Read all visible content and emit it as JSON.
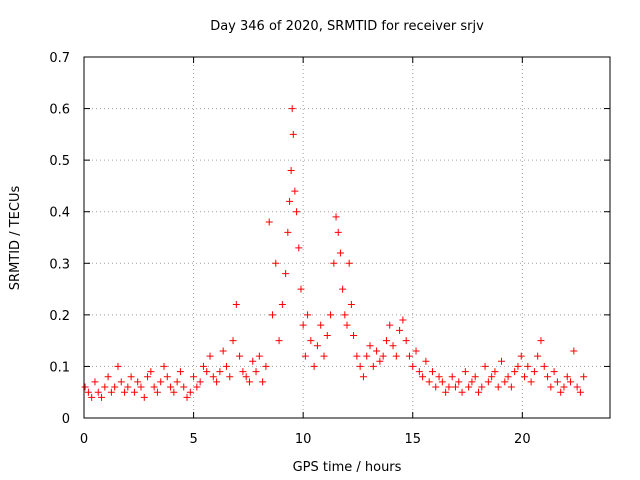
{
  "chart_data": {
    "type": "scatter",
    "title": "Day 346 of 2020, SRMTID for receiver srjv",
    "xlabel": "GPS time / hours",
    "ylabel": "SRMTID / TECUs",
    "xlim": [
      0,
      24
    ],
    "ylim": [
      0,
      0.7
    ],
    "xticks": [
      0,
      5,
      10,
      15,
      20
    ],
    "yticks": [
      0,
      0.1,
      0.2,
      0.3,
      0.4,
      0.5,
      0.6,
      0.7
    ],
    "grid": true,
    "marker": "+",
    "color": "#ff0000",
    "series": [
      {
        "name": "SRMTID",
        "x": [
          0.05,
          0.2,
          0.35,
          0.5,
          0.65,
          0.8,
          0.95,
          1.1,
          1.25,
          1.4,
          1.55,
          1.7,
          1.85,
          2.0,
          2.15,
          2.3,
          2.45,
          2.6,
          2.75,
          2.9,
          3.05,
          3.2,
          3.35,
          3.5,
          3.65,
          3.8,
          3.95,
          4.1,
          4.25,
          4.4,
          4.55,
          4.7,
          4.85,
          5.0,
          5.15,
          5.3,
          5.45,
          5.6,
          5.75,
          5.9,
          6.05,
          6.2,
          6.35,
          6.5,
          6.65,
          6.8,
          6.95,
          7.1,
          7.25,
          7.4,
          7.55,
          7.7,
          7.85,
          8.0,
          8.15,
          8.3,
          8.45,
          8.6,
          8.75,
          8.9,
          9.05,
          9.2,
          9.3,
          9.38,
          9.45,
          9.5,
          9.55,
          9.62,
          9.7,
          9.8,
          9.9,
          10.0,
          10.1,
          10.2,
          10.35,
          10.5,
          10.65,
          10.8,
          10.95,
          11.1,
          11.25,
          11.4,
          11.5,
          11.6,
          11.7,
          11.8,
          11.9,
          12.0,
          12.1,
          12.2,
          12.3,
          12.45,
          12.6,
          12.75,
          12.9,
          13.05,
          13.2,
          13.35,
          13.5,
          13.65,
          13.8,
          13.95,
          14.1,
          14.25,
          14.4,
          14.55,
          14.7,
          14.85,
          15.0,
          15.15,
          15.3,
          15.45,
          15.6,
          15.75,
          15.9,
          16.05,
          16.2,
          16.35,
          16.5,
          16.65,
          16.8,
          16.95,
          17.1,
          17.25,
          17.4,
          17.55,
          17.7,
          17.85,
          18.0,
          18.15,
          18.3,
          18.45,
          18.6,
          18.75,
          18.9,
          19.05,
          19.2,
          19.35,
          19.5,
          19.65,
          19.8,
          19.95,
          20.1,
          20.25,
          20.4,
          20.55,
          20.7,
          20.85,
          21.0,
          21.15,
          21.3,
          21.45,
          21.6,
          21.75,
          21.9,
          22.05,
          22.2,
          22.35,
          22.5,
          22.65,
          22.8
        ],
        "y": [
          0.06,
          0.05,
          0.04,
          0.07,
          0.05,
          0.04,
          0.06,
          0.08,
          0.05,
          0.06,
          0.1,
          0.07,
          0.05,
          0.06,
          0.08,
          0.05,
          0.07,
          0.06,
          0.04,
          0.08,
          0.09,
          0.06,
          0.05,
          0.07,
          0.1,
          0.08,
          0.06,
          0.05,
          0.07,
          0.09,
          0.06,
          0.04,
          0.05,
          0.08,
          0.06,
          0.07,
          0.1,
          0.09,
          0.12,
          0.08,
          0.07,
          0.09,
          0.13,
          0.1,
          0.08,
          0.15,
          0.22,
          0.12,
          0.09,
          0.08,
          0.07,
          0.11,
          0.09,
          0.12,
          0.07,
          0.1,
          0.38,
          0.2,
          0.3,
          0.15,
          0.22,
          0.28,
          0.36,
          0.42,
          0.48,
          0.6,
          0.55,
          0.44,
          0.4,
          0.33,
          0.25,
          0.18,
          0.12,
          0.2,
          0.15,
          0.1,
          0.14,
          0.18,
          0.12,
          0.16,
          0.2,
          0.3,
          0.39,
          0.36,
          0.32,
          0.25,
          0.2,
          0.18,
          0.3,
          0.22,
          0.16,
          0.12,
          0.1,
          0.08,
          0.12,
          0.14,
          0.1,
          0.13,
          0.11,
          0.12,
          0.15,
          0.18,
          0.14,
          0.12,
          0.17,
          0.19,
          0.15,
          0.12,
          0.1,
          0.13,
          0.09,
          0.08,
          0.11,
          0.07,
          0.09,
          0.06,
          0.08,
          0.07,
          0.05,
          0.06,
          0.08,
          0.06,
          0.07,
          0.05,
          0.09,
          0.06,
          0.07,
          0.08,
          0.05,
          0.06,
          0.1,
          0.07,
          0.08,
          0.09,
          0.06,
          0.11,
          0.07,
          0.08,
          0.06,
          0.09,
          0.1,
          0.12,
          0.08,
          0.1,
          0.07,
          0.09,
          0.12,
          0.15,
          0.1,
          0.08,
          0.06,
          0.09,
          0.07,
          0.05,
          0.06,
          0.08,
          0.07,
          0.13,
          0.06,
          0.05,
          0.08
        ]
      }
    ]
  }
}
